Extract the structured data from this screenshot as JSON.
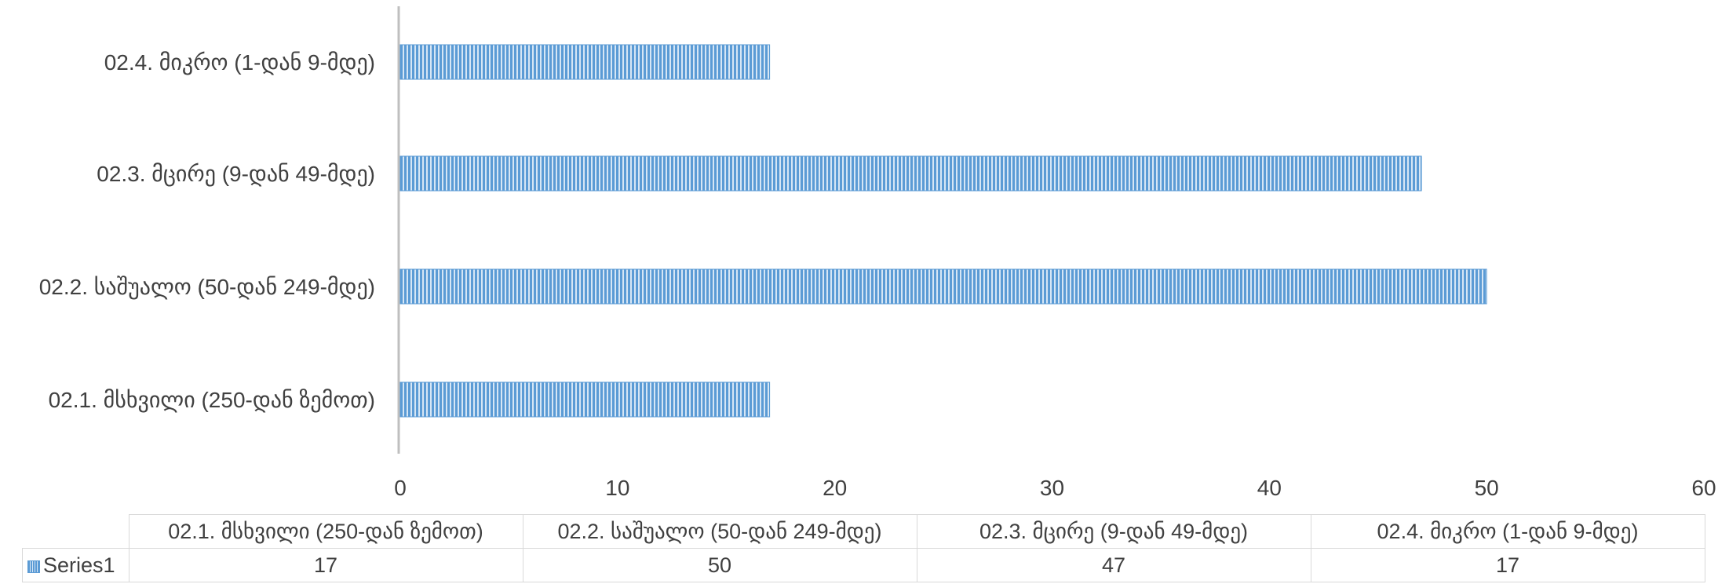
{
  "chart_data": {
    "type": "bar",
    "orientation": "horizontal",
    "categories": [
      "02.1. მსხვილი (250-დან ზემოთ)",
      "02.2. საშუალო (50-დან 249-მდე)",
      "02.3. მცირე (9-დან 49-მდე)",
      "02.4. მიკრო (1-დან 9-მდე)"
    ],
    "series": [
      {
        "name": "Series1",
        "values": [
          17,
          50,
          47,
          17
        ],
        "color": "#5b9bd5",
        "pattern": "vertical-stripes"
      }
    ],
    "xlim": [
      0,
      60
    ],
    "xticks": [
      "0",
      "10",
      "20",
      "30",
      "40",
      "50",
      "60"
    ],
    "grid": false,
    "legend": "data-table-below"
  },
  "table": {
    "row_label": "Series1",
    "values": [
      "17",
      "50",
      "47",
      "17"
    ]
  }
}
